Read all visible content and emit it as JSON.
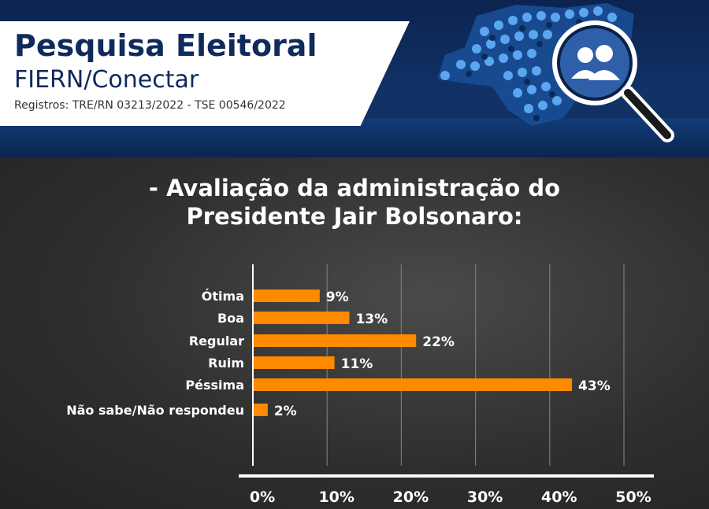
{
  "header": {
    "title": "Pesquisa Eleitoral",
    "subtitle": "FIERN/Conectar",
    "registration": "Registros: TRE/RN 03213/2022 - TSE 00546/2022",
    "icon": "magnifier-people-map-icon",
    "colors": {
      "navy": "#0f2a5c",
      "accent_blue": "#2d7fd4"
    }
  },
  "heading": {
    "line1": "- Avaliação da administração do",
    "line2": "Presidente Jair Bolsonaro:"
  },
  "chart_data": {
    "type": "bar",
    "orientation": "horizontal",
    "title": "",
    "xlabel": "",
    "ylabel": "",
    "categories": [
      "Ótima",
      "Boa",
      "Regular",
      "Ruim",
      "Péssima",
      "Não sabe/Não respondeu"
    ],
    "values": [
      9,
      13,
      22,
      11,
      43,
      2
    ],
    "value_labels": [
      "9%",
      "13%",
      "22%",
      "11%",
      "43%",
      "2%"
    ],
    "xlim": [
      0,
      50
    ],
    "x_ticks": [
      0,
      10,
      20,
      30,
      40,
      50
    ],
    "x_tick_labels": [
      "0%",
      "10%",
      "20%",
      "30%",
      "40%",
      "50%"
    ],
    "grid": true,
    "legend": "none",
    "bar_color": "#ff8a00"
  }
}
